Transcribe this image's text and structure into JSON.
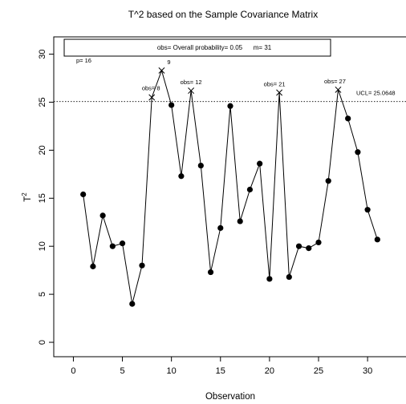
{
  "chart_data": {
    "type": "line",
    "title": "T^2 based on the Sample Covariance Matrix",
    "xlabel": "Observation",
    "ylabel": "T",
    "ylabel_sup": "2",
    "xlim": [
      -2,
      34
    ],
    "ylim": [
      -1.5,
      31.8
    ],
    "xticks": [
      0,
      5,
      10,
      15,
      20,
      25,
      30
    ],
    "yticks": [
      0,
      5,
      10,
      15,
      20,
      25,
      30
    ],
    "grid": false,
    "x": [
      1,
      2,
      3,
      4,
      5,
      6,
      7,
      8,
      9,
      10,
      11,
      12,
      13,
      14,
      15,
      16,
      17,
      18,
      19,
      20,
      21,
      22,
      23,
      24,
      25,
      26,
      27,
      28,
      29,
      30,
      31
    ],
    "values": [
      15.4,
      7.9,
      13.2,
      10.0,
      10.3,
      4.0,
      8.0,
      25.5,
      28.3,
      24.7,
      17.3,
      26.2,
      18.4,
      7.3,
      11.9,
      24.6,
      12.6,
      15.9,
      18.6,
      6.6,
      26.0,
      6.8,
      10.0,
      9.8,
      10.4,
      16.8,
      26.3,
      23.3,
      19.8,
      13.8,
      10.7
    ],
    "ucl": {
      "value": 25.0648,
      "label": "UCL= 25.0648"
    },
    "out_of_control": [
      {
        "x": 8,
        "label": "obs= 8"
      },
      {
        "x": 9,
        "label": "9"
      },
      {
        "x": 12,
        "label": "obs= 12"
      },
      {
        "x": 21,
        "label": "obs= 21"
      },
      {
        "x": 27,
        "label": "obs= 27"
      }
    ],
    "info_box": {
      "text_left": "obs= Overall probability= 0.05",
      "text_right": "m= 31"
    },
    "p_label": "p= 16"
  }
}
